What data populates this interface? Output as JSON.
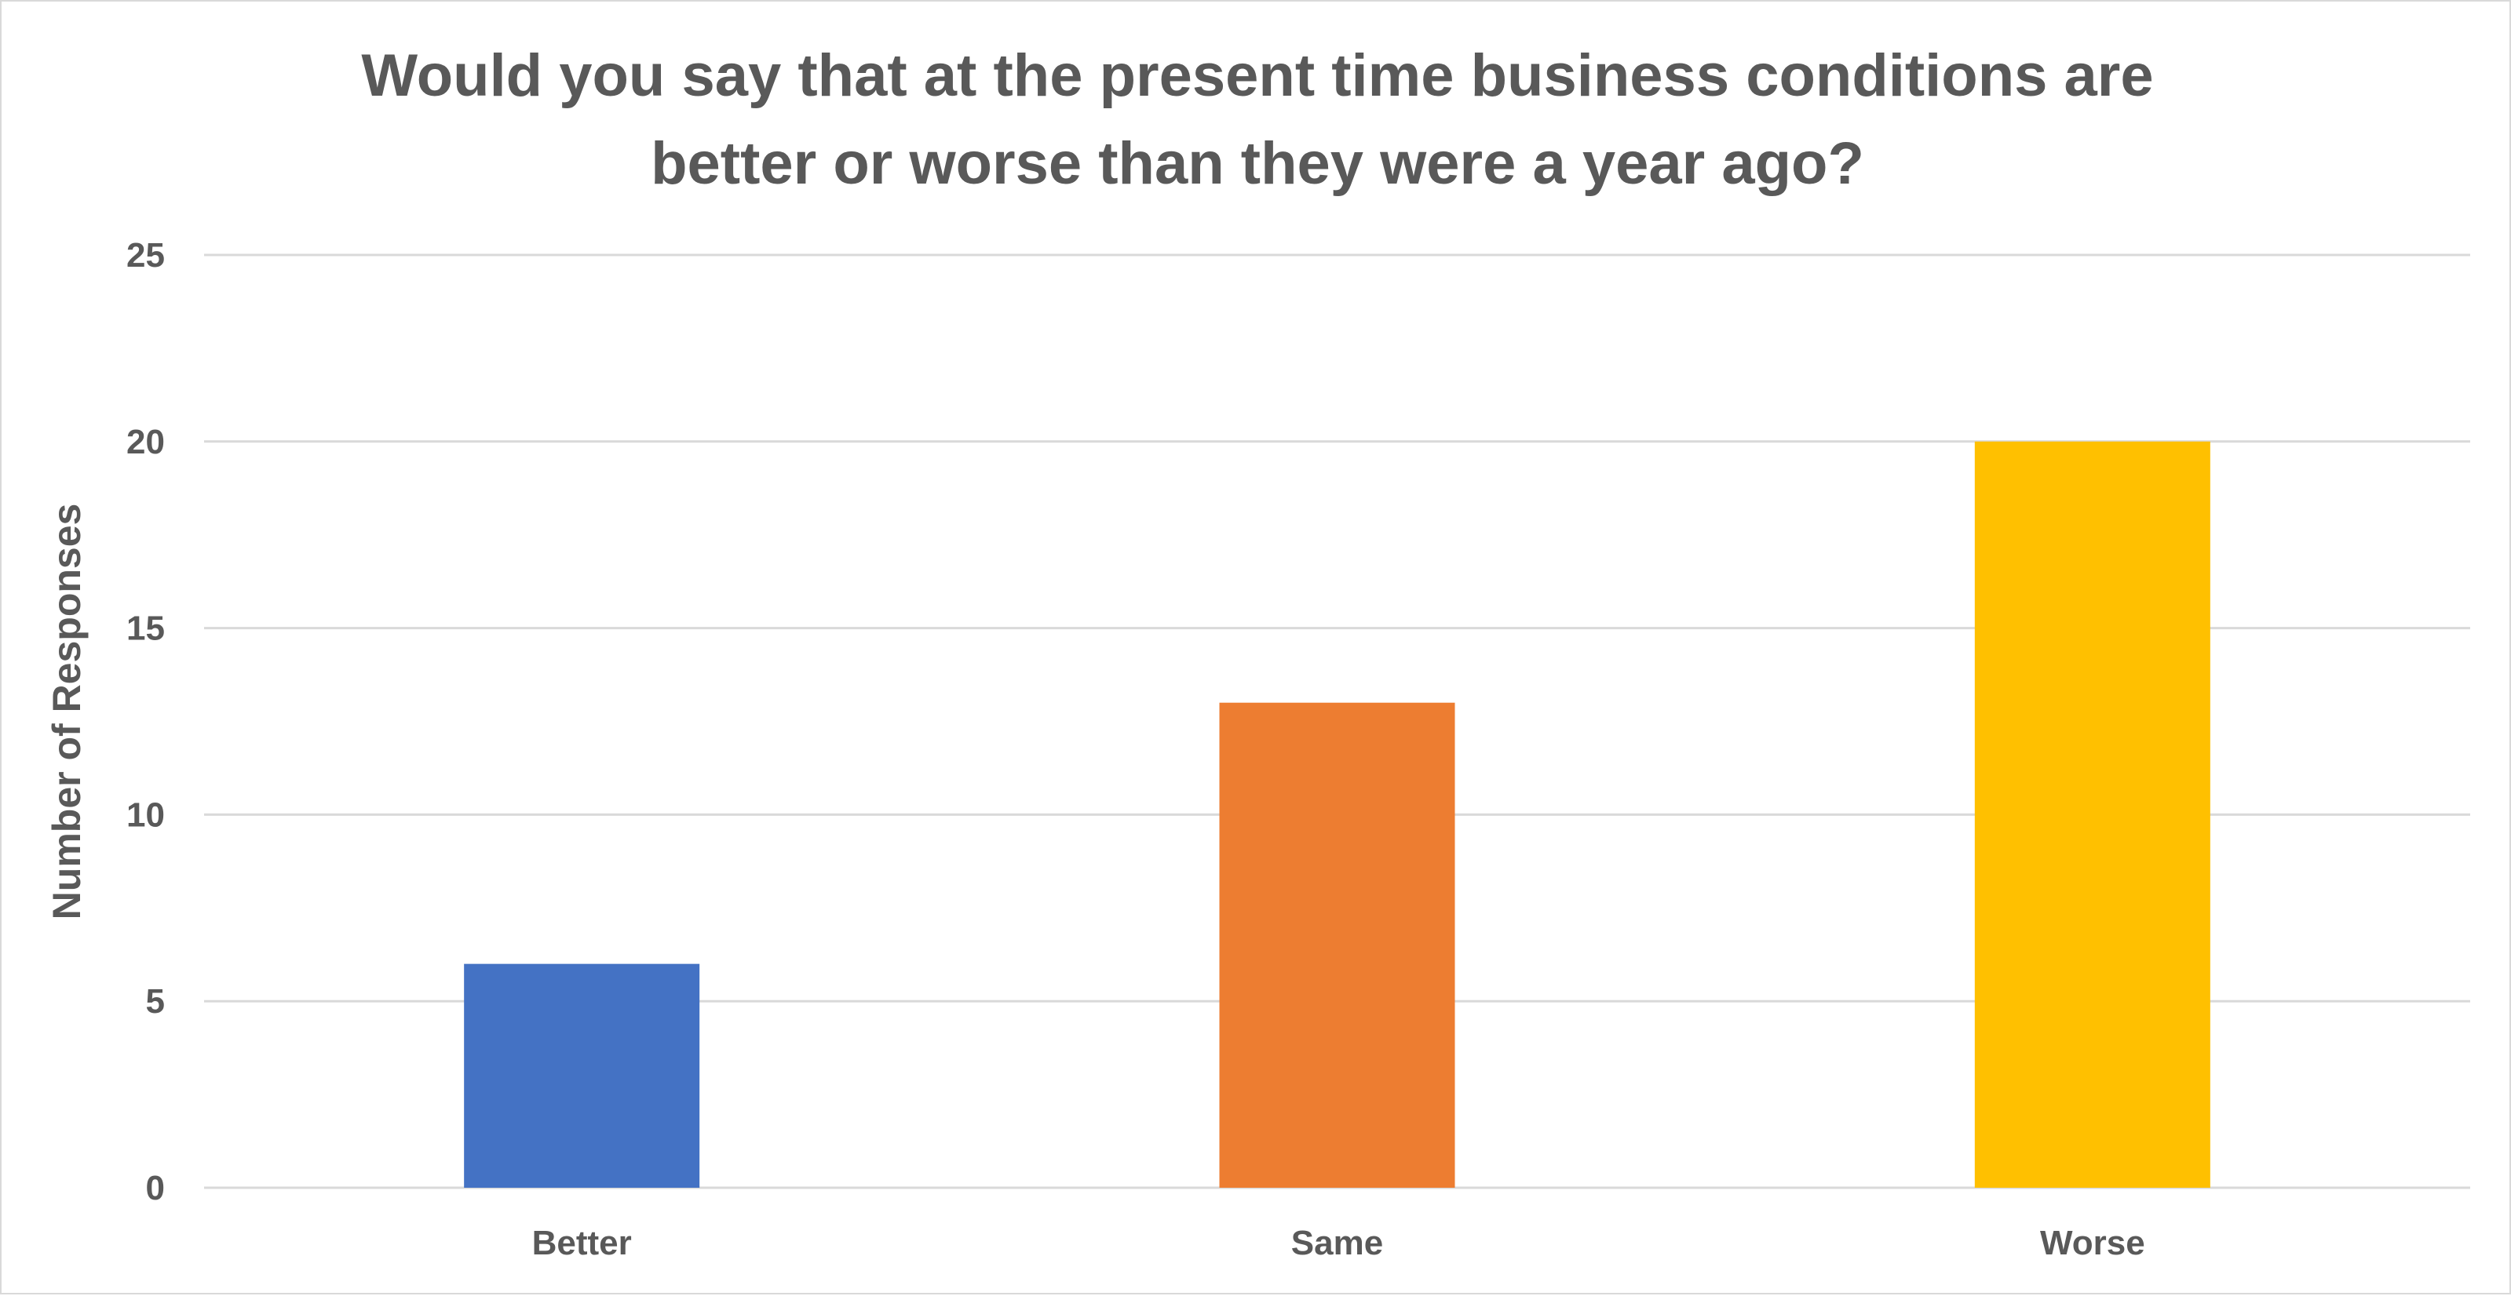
{
  "chart_data": {
    "type": "bar",
    "title_lines": [
      "Would you say that at the present time business conditions are",
      "better or worse than they were a year ago?"
    ],
    "xlabel": "",
    "ylabel": "Number of Responses",
    "categories": [
      "Better",
      "Same",
      "Worse"
    ],
    "values": [
      6,
      13,
      20
    ],
    "colors": [
      "#4472C4",
      "#ED7D31",
      "#FFC000"
    ],
    "ylim": [
      0,
      25
    ],
    "yticks": [
      0,
      5,
      10,
      15,
      20,
      25
    ],
    "grid": true,
    "legend": "none"
  }
}
